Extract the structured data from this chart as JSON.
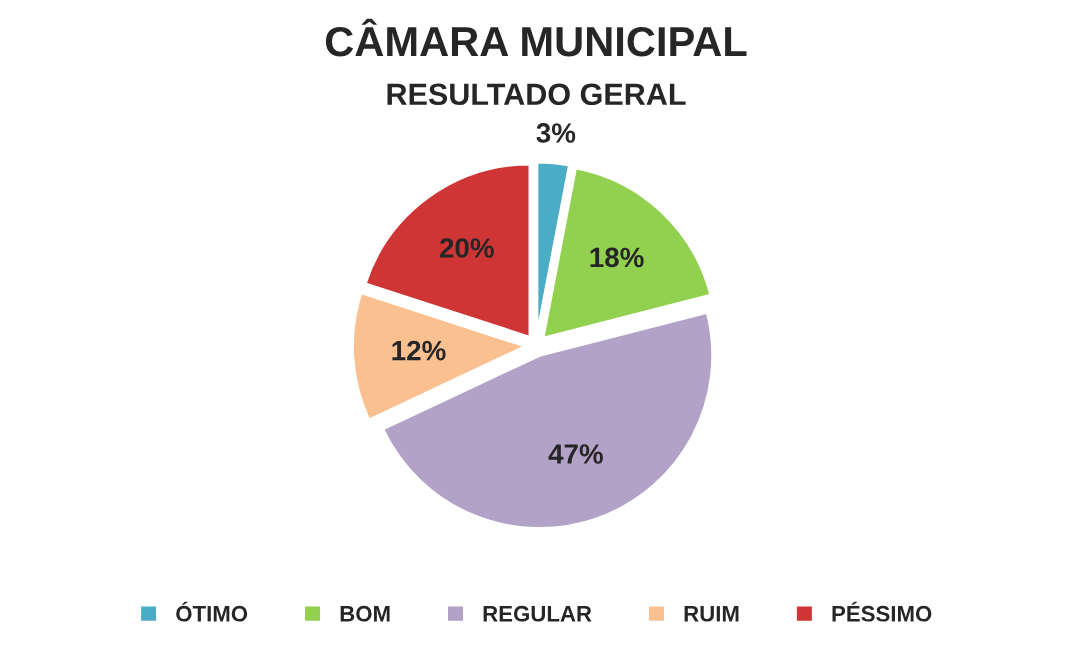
{
  "chart_data": {
    "type": "pie",
    "title": "CÂMARA MUNICIPAL",
    "subtitle": "RESULTADO GERAL",
    "categories": [
      "ÓTIMO",
      "BOM",
      "REGULAR",
      "RUIM",
      "PÉSSIMO"
    ],
    "values": [
      3,
      18,
      47,
      12,
      20
    ],
    "value_labels": [
      "3%",
      "18%",
      "47%",
      "12%",
      "20%"
    ],
    "colors": [
      "#4bacc6",
      "#92d050",
      "#b3a2c7",
      "#fac090",
      "#d03535"
    ],
    "legend": "bottom"
  }
}
